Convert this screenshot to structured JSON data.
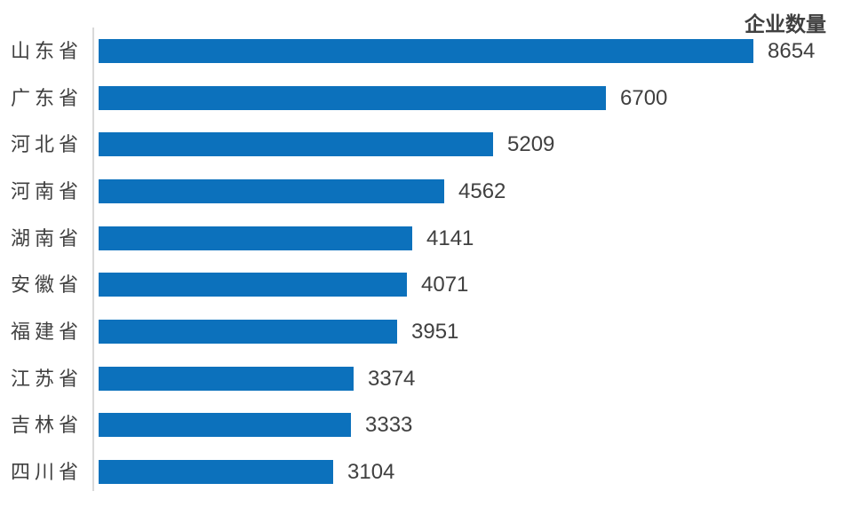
{
  "chart_data": {
    "type": "bar",
    "orientation": "horizontal",
    "title": "企业数量",
    "categories": [
      "山东省",
      "广东省",
      "河北省",
      "河南省",
      "湖南省",
      "安徽省",
      "福建省",
      "江苏省",
      "吉林省",
      "四川省"
    ],
    "values": [
      8654,
      6700,
      5209,
      4562,
      4141,
      4071,
      3951,
      3374,
      3333,
      3104
    ],
    "xlabel": "",
    "ylabel": "",
    "xlim": [
      0,
      8654
    ],
    "grid": false,
    "legend_position": "none",
    "value_labels": "end-of-bar",
    "colors": {
      "bar": "#0C71BC",
      "axis_line": "#D9D9D9",
      "text": "#404040",
      "background": "#FFFFFF"
    }
  }
}
